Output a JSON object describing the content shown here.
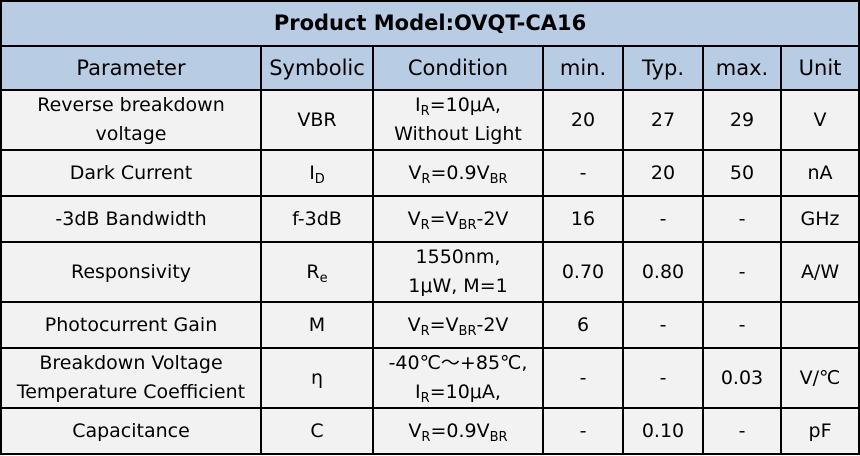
{
  "title": "Product Model:OVQT-CA16",
  "headers": [
    "Parameter",
    "Symbolic",
    "Condition",
    "min.",
    "Typ.",
    "max.",
    "Unit"
  ],
  "rows": [
    {
      "parameter": [
        "Reverse breakdown",
        "voltage"
      ],
      "symbol": {
        "main": "VBR",
        "sub": ""
      },
      "condition": [
        "I<sub>R</sub>=10μA,",
        "Without Light"
      ],
      "min": "20",
      "typ": "27",
      "max": "29",
      "unit": "V"
    },
    {
      "parameter": [
        "Dark Current"
      ],
      "symbol": {
        "main": "I",
        "sub": "D"
      },
      "condition": [
        "V<sub>R</sub>=0.9V<sub>BR</sub>"
      ],
      "min": "-",
      "typ": "20",
      "max": "50",
      "unit": "nA"
    },
    {
      "parameter": [
        "-3dB Bandwidth"
      ],
      "symbol": {
        "main": "f-3dB",
        "sub": ""
      },
      "condition": [
        "V<sub>R</sub>=V<sub>BR</sub>-2V"
      ],
      "min": "16",
      "typ": "-",
      "max": "-",
      "unit": "GHz"
    },
    {
      "parameter": [
        "Responsivity"
      ],
      "symbol": {
        "main": "R",
        "sub": "e"
      },
      "condition": [
        "1550nm,",
        "1μW, M=1"
      ],
      "min": "0.70",
      "typ": "0.80",
      "max": "-",
      "unit": "A/W"
    },
    {
      "parameter": [
        "Photocurrent Gain"
      ],
      "symbol": {
        "main": "M",
        "sub": ""
      },
      "condition": [
        "V<sub>R</sub>=V<sub>BR</sub>-2V"
      ],
      "min": "6",
      "typ": "-",
      "max": "-",
      "unit": ""
    },
    {
      "parameter": [
        "Breakdown Voltage",
        "Temperature Coefficient"
      ],
      "symbol": {
        "main": "η",
        "sub": ""
      },
      "condition": [
        "-40℃～+85℃,",
        "I<sub>R</sub>=10μA,"
      ],
      "min": "-",
      "typ": "-",
      "max": "0.03",
      "unit": "V/℃"
    },
    {
      "parameter": [
        "Capacitance"
      ],
      "symbol": {
        "main": "C",
        "sub": ""
      },
      "condition": [
        "V<sub>R</sub>=0.9V<sub>BR</sub>"
      ],
      "min": "-",
      "typ": "0.10",
      "max": "-",
      "unit": "pF"
    }
  ]
}
